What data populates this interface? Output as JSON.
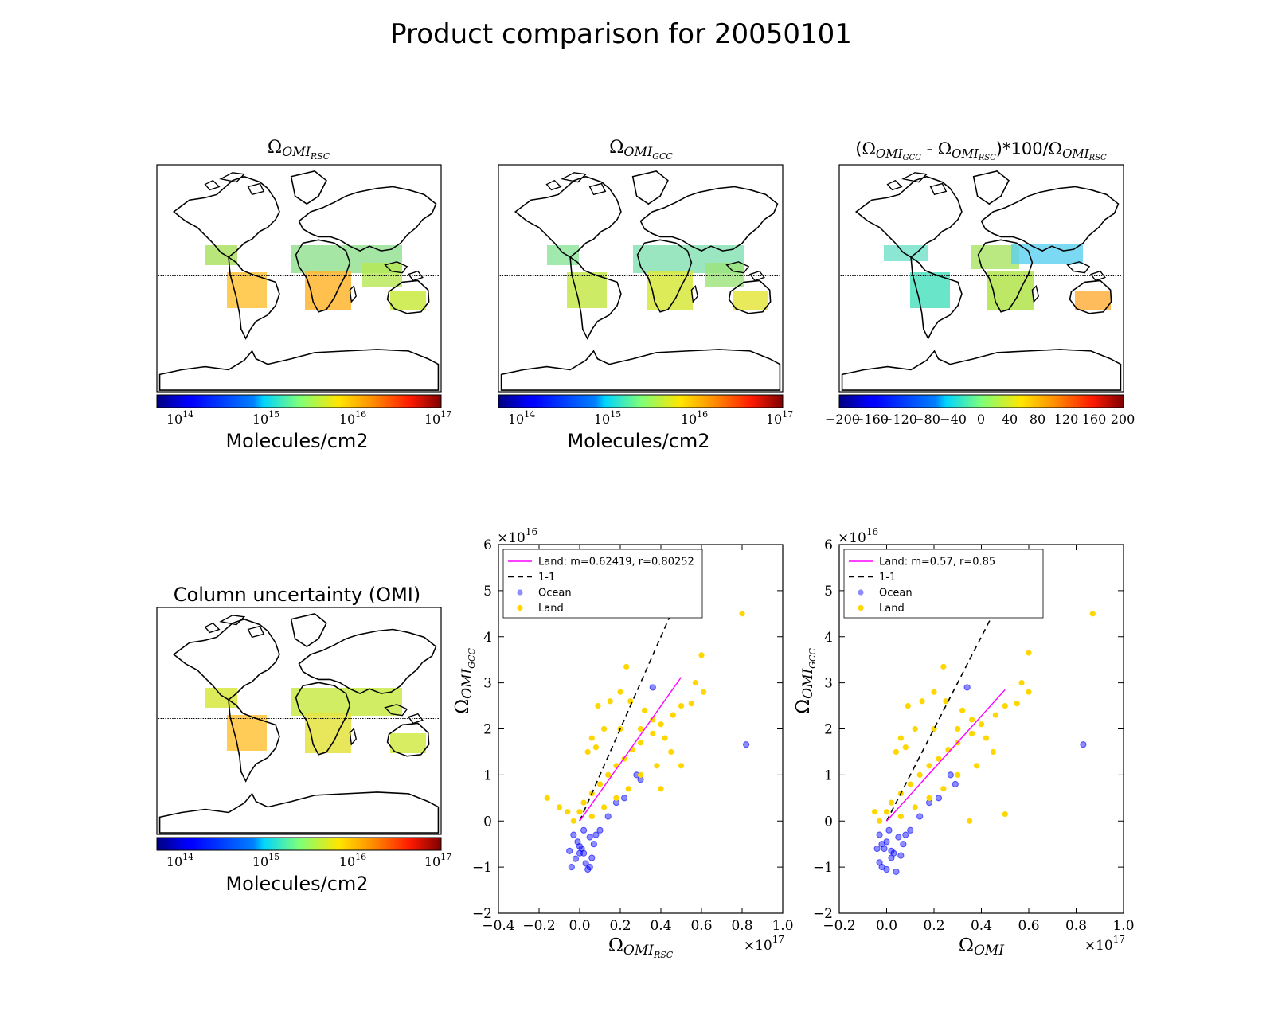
{
  "suptitle": "Product comparison for 20050101",
  "maps": [
    {
      "id": "rsc",
      "title_symbol": "Ω",
      "title_sub": "OMI",
      "title_subsub": "RSC",
      "colorbar_label": "Molecules/cm2",
      "colorbar_scale": "log",
      "colorbar_ticks": [
        "10^14",
        "10^15",
        "10^16",
        "10^17"
      ],
      "colormap": "jet"
    },
    {
      "id": "gcc",
      "title_symbol": "Ω",
      "title_sub": "OMI",
      "title_subsub": "GCC",
      "colorbar_label": "Molecules/cm2",
      "colorbar_scale": "log",
      "colorbar_ticks": [
        "10^14",
        "10^15",
        "10^16",
        "10^17"
      ],
      "colormap": "jet"
    },
    {
      "id": "diff",
      "title_parts": [
        "(",
        "Ω",
        "OMI",
        "GCC",
        " - ",
        "Ω",
        "OMI",
        "RSC",
        ")*100/",
        "Ω",
        "OMI",
        "RSC"
      ],
      "colorbar_label": "",
      "colorbar_scale": "linear",
      "colorbar_ticks": [
        "−200",
        "−160",
        "−120",
        "−80",
        "−40",
        "0",
        "40",
        "80",
        "120",
        "160",
        "200"
      ],
      "colormap": "jet"
    },
    {
      "id": "unc",
      "title": "Column uncertainty (OMI)",
      "colorbar_label": "Molecules/cm2",
      "colorbar_scale": "log",
      "colorbar_ticks": [
        "10^14",
        "10^15",
        "10^16",
        "10^17"
      ],
      "colormap": "jet"
    }
  ],
  "chart_data": [
    {
      "type": "scatter",
      "id": "scatter-rsc",
      "xlabel": "ΩOMI_RSC",
      "ylabel": "ΩOMI_GCC",
      "xlim": [
        -0.4,
        1.0
      ],
      "ylim": [
        -2,
        6
      ],
      "x_multiplier": "×10^17",
      "y_multiplier": "×10^16",
      "x_ticks": [
        "−0.4",
        "−0.2",
        "0.0",
        "0.2",
        "0.4",
        "0.6",
        "0.8",
        "1.0"
      ],
      "y_ticks": [
        "−2",
        "−1",
        "0",
        "1",
        "2",
        "3",
        "4",
        "5",
        "6"
      ],
      "legend_position": "top-left",
      "legend": [
        {
          "label": "Land: m=0.62419, r=0.80252",
          "kind": "line",
          "color": "#ff00ff"
        },
        {
          "label": "1-1",
          "kind": "dashed",
          "color": "#000000"
        },
        {
          "label": "Ocean",
          "kind": "marker",
          "color": "#0000ff"
        },
        {
          "label": "Land",
          "kind": "marker",
          "color": "#ffd700"
        }
      ],
      "fit_line": {
        "slope": 0.62419,
        "r": 0.80252,
        "x": [
          0.0,
          0.5
        ]
      },
      "one_to_one": {
        "x": [
          0.0,
          0.5
        ]
      },
      "series": [
        {
          "name": "Ocean",
          "color": "#0000ff",
          "points": [
            [
              0.82,
              1.66
            ],
            [
              0.36,
              2.9
            ],
            [
              0.05,
              -1.0
            ],
            [
              0.03,
              -0.92
            ],
            [
              -0.04,
              -1.0
            ],
            [
              -0.02,
              -0.82
            ],
            [
              0.01,
              -0.6
            ],
            [
              0.04,
              -1.05
            ],
            [
              0.02,
              -0.7
            ],
            [
              -0.01,
              -0.45
            ],
            [
              0.06,
              -0.8
            ],
            [
              0.0,
              -0.55
            ],
            [
              0.08,
              -0.3
            ],
            [
              0.1,
              -0.2
            ],
            [
              0.14,
              0.1
            ],
            [
              0.18,
              0.4
            ],
            [
              0.22,
              0.5
            ],
            [
              0.28,
              1.0
            ],
            [
              0.3,
              0.9
            ],
            [
              -0.03,
              -0.3
            ],
            [
              0.05,
              -0.35
            ],
            [
              0.02,
              -0.2
            ],
            [
              0.0,
              -0.7
            ],
            [
              -0.05,
              -0.65
            ],
            [
              0.07,
              -0.5
            ]
          ]
        },
        {
          "name": "Land",
          "color": "#ffd700",
          "points": [
            [
              0.8,
              4.5
            ],
            [
              0.4,
              4.5
            ],
            [
              0.6,
              3.6
            ],
            [
              0.23,
              3.35
            ],
            [
              0.57,
              3.0
            ],
            [
              0.61,
              2.8
            ],
            [
              0.55,
              2.55
            ],
            [
              0.5,
              2.5
            ],
            [
              0.46,
              2.3
            ],
            [
              0.4,
              2.1
            ],
            [
              0.36,
              1.9
            ],
            [
              0.3,
              1.7
            ],
            [
              0.26,
              1.55
            ],
            [
              0.22,
              1.35
            ],
            [
              0.18,
              1.2
            ],
            [
              0.14,
              1.0
            ],
            [
              0.1,
              0.8
            ],
            [
              0.06,
              0.6
            ],
            [
              0.02,
              0.4
            ],
            [
              0.0,
              0.2
            ],
            [
              -0.03,
              0.0
            ],
            [
              -0.06,
              0.2
            ],
            [
              -0.1,
              0.3
            ],
            [
              -0.16,
              0.5
            ],
            [
              0.08,
              1.6
            ],
            [
              0.12,
              2.0
            ],
            [
              0.04,
              1.5
            ],
            [
              0.06,
              1.8
            ],
            [
              0.09,
              2.5
            ],
            [
              0.15,
              2.6
            ],
            [
              0.2,
              2.8
            ],
            [
              0.25,
              2.6
            ],
            [
              0.32,
              2.4
            ],
            [
              0.36,
              2.2
            ],
            [
              0.42,
              1.8
            ],
            [
              0.45,
              1.5
            ],
            [
              0.38,
              1.2
            ],
            [
              0.3,
              1.0
            ],
            [
              0.24,
              0.7
            ],
            [
              0.18,
              0.5
            ],
            [
              0.12,
              0.3
            ],
            [
              0.06,
              0.1
            ],
            [
              0.4,
              0.7
            ],
            [
              0.5,
              1.2
            ],
            [
              0.3,
              2.0
            ],
            [
              0.2,
              2.0
            ]
          ]
        }
      ]
    },
    {
      "type": "scatter",
      "id": "scatter-omi",
      "xlabel": "ΩOMI",
      "ylabel": "ΩOMI_GCC",
      "xlim": [
        -0.2,
        1.0
      ],
      "ylim": [
        -2,
        6
      ],
      "x_multiplier": "×10^17",
      "y_multiplier": "×10^16",
      "x_ticks": [
        "−0.2",
        "0.0",
        "0.2",
        "0.4",
        "0.6",
        "0.8",
        "1.0"
      ],
      "y_ticks": [
        "−2",
        "−1",
        "0",
        "1",
        "2",
        "3",
        "4",
        "5",
        "6"
      ],
      "legend_position": "top-left",
      "legend": [
        {
          "label": "Land: m=0.57, r=0.85",
          "kind": "line",
          "color": "#ff00ff"
        },
        {
          "label": "1-1",
          "kind": "dashed",
          "color": "#000000"
        },
        {
          "label": "Ocean",
          "kind": "marker",
          "color": "#0000ff"
        },
        {
          "label": "Land",
          "kind": "marker",
          "color": "#ffd700"
        }
      ],
      "fit_line": {
        "slope": 0.57,
        "r": 0.85,
        "x": [
          0.0,
          0.5
        ]
      },
      "one_to_one": {
        "x": [
          0.0,
          0.49
        ]
      },
      "series": [
        {
          "name": "Ocean",
          "color": "#0000ff",
          "points": [
            [
              0.83,
              1.66
            ],
            [
              0.34,
              2.9
            ],
            [
              -0.02,
              -1.0
            ],
            [
              -0.03,
              -0.9
            ],
            [
              0.0,
              -1.05
            ],
            [
              0.02,
              -0.8
            ],
            [
              -0.01,
              -0.6
            ],
            [
              0.04,
              -1.1
            ],
            [
              0.03,
              -0.7
            ],
            [
              0.0,
              -0.45
            ],
            [
              0.06,
              -0.75
            ],
            [
              -0.02,
              -0.5
            ],
            [
              0.08,
              -0.3
            ],
            [
              0.1,
              -0.2
            ],
            [
              0.14,
              0.1
            ],
            [
              0.18,
              0.4
            ],
            [
              0.22,
              0.5
            ],
            [
              0.27,
              1.0
            ],
            [
              0.29,
              0.8
            ],
            [
              -0.03,
              -0.3
            ],
            [
              0.05,
              -0.35
            ],
            [
              0.01,
              -0.2
            ],
            [
              0.02,
              -0.65
            ],
            [
              -0.04,
              -0.6
            ],
            [
              0.07,
              -0.5
            ]
          ]
        },
        {
          "name": "Land",
          "color": "#ffd700",
          "points": [
            [
              0.87,
              4.5
            ],
            [
              0.5,
              4.5
            ],
            [
              0.6,
              3.65
            ],
            [
              0.24,
              3.35
            ],
            [
              0.57,
              3.0
            ],
            [
              0.6,
              2.8
            ],
            [
              0.55,
              2.55
            ],
            [
              0.5,
              2.5
            ],
            [
              0.46,
              2.3
            ],
            [
              0.4,
              2.1
            ],
            [
              0.36,
              1.9
            ],
            [
              0.3,
              1.7
            ],
            [
              0.26,
              1.55
            ],
            [
              0.22,
              1.35
            ],
            [
              0.18,
              1.2
            ],
            [
              0.14,
              1.0
            ],
            [
              0.1,
              0.8
            ],
            [
              0.06,
              0.6
            ],
            [
              0.02,
              0.4
            ],
            [
              0.0,
              0.2
            ],
            [
              -0.03,
              0.0
            ],
            [
              -0.05,
              0.2
            ],
            [
              0.08,
              1.6
            ],
            [
              0.12,
              2.0
            ],
            [
              0.04,
              1.5
            ],
            [
              0.06,
              1.8
            ],
            [
              0.09,
              2.5
            ],
            [
              0.15,
              2.6
            ],
            [
              0.2,
              2.8
            ],
            [
              0.25,
              2.6
            ],
            [
              0.32,
              2.4
            ],
            [
              0.36,
              2.2
            ],
            [
              0.42,
              1.8
            ],
            [
              0.45,
              1.5
            ],
            [
              0.38,
              1.2
            ],
            [
              0.3,
              1.0
            ],
            [
              0.24,
              0.7
            ],
            [
              0.18,
              0.5
            ],
            [
              0.12,
              0.3
            ],
            [
              0.06,
              0.1
            ],
            [
              0.35,
              0.0
            ],
            [
              0.5,
              0.15
            ],
            [
              0.3,
              2.0
            ],
            [
              0.2,
              2.0
            ]
          ]
        }
      ]
    }
  ]
}
